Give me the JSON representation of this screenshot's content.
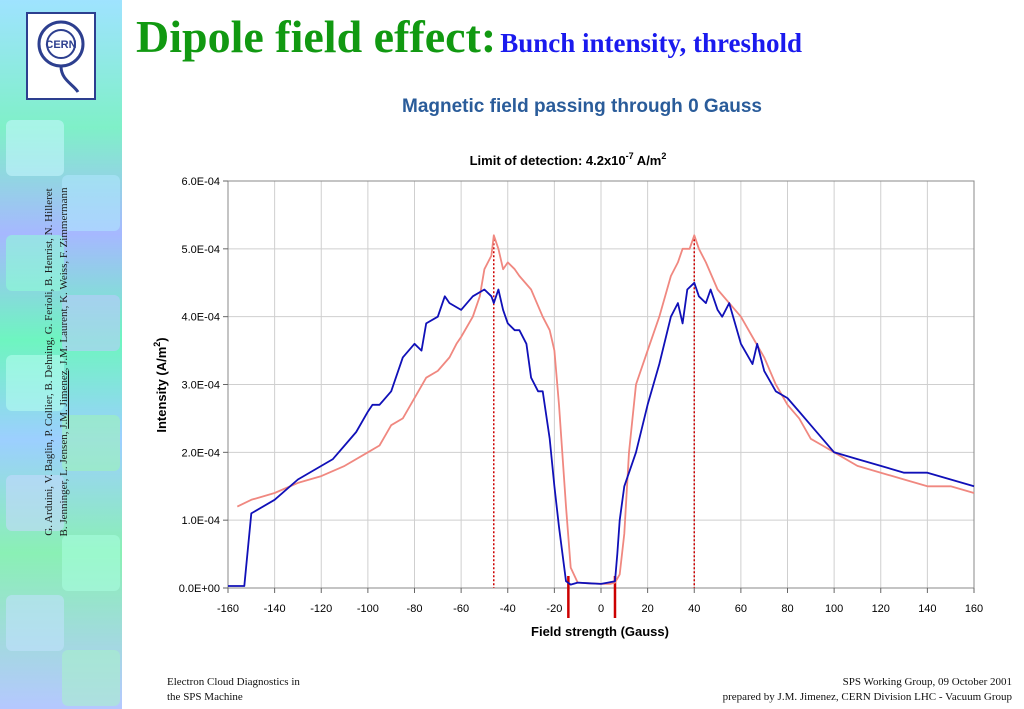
{
  "slide": {
    "title_main": "Dipole field effect:",
    "title_sub": "Bunch intensity, threshold",
    "subtitle": "Magnetic field passing through 0 Gauss",
    "logo_text": "CERN",
    "authors_line1": "G. Arduini, V. Baglin, P. Collier, B. Dehning, G. Ferioli, B. Henrist, N. Hilleret",
    "authors_line2_a": "B. Jenninger, L. Jensen, ",
    "authors_line2_b": "J.M. Jimenez",
    "authors_line2_c": ", J.M. Laurent, K. Weiss, F. Zimmermann",
    "footer_left_1": "Electron Cloud Diagnostics in",
    "footer_left_2": "the SPS Machine",
    "footer_right_1": "SPS Working Group, 09 October 2001",
    "footer_right_2": "prepared by J.M. Jimenez, CERN Division LHC - Vacuum Group"
  },
  "colors": {
    "title_green": "#119911",
    "title_blue": "#1a1aee",
    "subtitle_blue": "#2a5c9a",
    "series_blue": "#1010b8",
    "series_pink": "#f08880",
    "marker_red": "#cc0000"
  },
  "chart_data": {
    "type": "line",
    "title": "Limit of detection: 4.2x10",
    "title_exp": "-7",
    "title_unit": " A/m",
    "title_unit_exp": "2",
    "xlabel": "Field strength (Gauss)",
    "ylabel": "Intensity (A/m",
    "ylabel_exp": "2",
    "ylabel_close": ")",
    "xlim": [
      -160,
      160
    ],
    "ylim": [
      0,
      0.0006
    ],
    "x_ticks": [
      "-160",
      "-140",
      "-120",
      "-100",
      "-80",
      "-60",
      "-40",
      "-20",
      "0",
      "20",
      "40",
      "60",
      "80",
      "100",
      "120",
      "140",
      "160"
    ],
    "y_ticks": [
      "0.0E+00",
      "1.0E-04",
      "2.0E-04",
      "3.0E-04",
      "4.0E-04",
      "5.0E-04",
      "6.0E-04"
    ],
    "grid": true,
    "vertical_markers": [
      -46,
      40
    ],
    "zero_region_markers": [
      -14,
      6
    ],
    "series": [
      {
        "color": "#1010b8",
        "x": [
          -160,
          -156,
          -153,
          -150,
          -140,
          -130,
          -120,
          -115,
          -110,
          -105,
          -100,
          -98,
          -95,
          -90,
          -85,
          -80,
          -77,
          -75,
          -70,
          -67,
          -65,
          -60,
          -55,
          -50,
          -47,
          -46,
          -44,
          -42,
          -40,
          -37,
          -35,
          -32,
          -30,
          -27,
          -25,
          -22,
          -20,
          -18,
          -15,
          -13,
          -10,
          -5,
          0,
          3,
          6,
          7,
          8,
          10,
          15,
          20,
          25,
          30,
          33,
          35,
          37,
          40,
          42,
          45,
          47,
          50,
          52,
          55,
          60,
          65,
          67,
          70,
          75,
          80,
          85,
          90,
          95,
          100,
          110,
          120,
          130,
          140,
          150,
          160
        ],
        "y": [
          3e-06,
          3e-06,
          3e-06,
          0.00011,
          0.00013,
          0.00016,
          0.00018,
          0.00019,
          0.00021,
          0.00023,
          0.00026,
          0.00027,
          0.00027,
          0.00029,
          0.00034,
          0.00036,
          0.00035,
          0.00039,
          0.0004,
          0.00043,
          0.00042,
          0.00041,
          0.00043,
          0.00044,
          0.00043,
          0.00042,
          0.00044,
          0.00041,
          0.00039,
          0.00038,
          0.00038,
          0.00036,
          0.00031,
          0.00029,
          0.00029,
          0.00022,
          0.00015,
          9e-05,
          1e-05,
          5e-06,
          8e-06,
          7e-06,
          6e-06,
          8e-06,
          1e-05,
          5e-05,
          0.0001,
          0.00015,
          0.0002,
          0.00027,
          0.00033,
          0.0004,
          0.00042,
          0.00039,
          0.00044,
          0.00045,
          0.00043,
          0.00042,
          0.00044,
          0.00041,
          0.0004,
          0.00042,
          0.00036,
          0.00033,
          0.00036,
          0.00032,
          0.00029,
          0.00028,
          0.00026,
          0.00024,
          0.00022,
          0.0002,
          0.00019,
          0.00018,
          0.00017,
          0.00017,
          0.00016,
          0.00015
        ]
      },
      {
        "color": "#f08880",
        "x": [
          -156,
          -150,
          -140,
          -130,
          -120,
          -110,
          -100,
          -95,
          -90,
          -85,
          -80,
          -75,
          -70,
          -65,
          -62,
          -60,
          -55,
          -52,
          -50,
          -47,
          -46,
          -44,
          -42,
          -40,
          -37,
          -35,
          -30,
          -25,
          -22,
          -20,
          -18,
          -15,
          -13,
          -10,
          -5,
          0,
          4,
          6,
          8,
          10,
          12,
          15,
          20,
          25,
          30,
          33,
          35,
          38,
          40,
          42,
          45,
          50,
          55,
          60,
          65,
          70,
          75,
          80,
          85,
          90,
          95,
          100,
          110,
          120,
          130,
          140,
          150,
          160
        ],
        "y": [
          0.00012,
          0.00013,
          0.00014,
          0.000155,
          0.000165,
          0.00018,
          0.0002,
          0.00021,
          0.00024,
          0.00025,
          0.00028,
          0.00031,
          0.00032,
          0.00034,
          0.00036,
          0.00037,
          0.0004,
          0.00043,
          0.00047,
          0.00049,
          0.00052,
          0.0005,
          0.00047,
          0.00048,
          0.00047,
          0.00046,
          0.00044,
          0.0004,
          0.00038,
          0.00035,
          0.00027,
          0.00012,
          3e-05,
          8e-06,
          7e-06,
          6e-06,
          6e-06,
          8e-06,
          2e-05,
          8e-05,
          0.0002,
          0.0003,
          0.00035,
          0.0004,
          0.00046,
          0.00048,
          0.0005,
          0.0005,
          0.00052,
          0.0005,
          0.00048,
          0.00044,
          0.00042,
          0.0004,
          0.00037,
          0.00034,
          0.0003,
          0.00027,
          0.00025,
          0.00022,
          0.00021,
          0.0002,
          0.00018,
          0.00017,
          0.00016,
          0.00015,
          0.00015,
          0.00014
        ]
      }
    ]
  }
}
